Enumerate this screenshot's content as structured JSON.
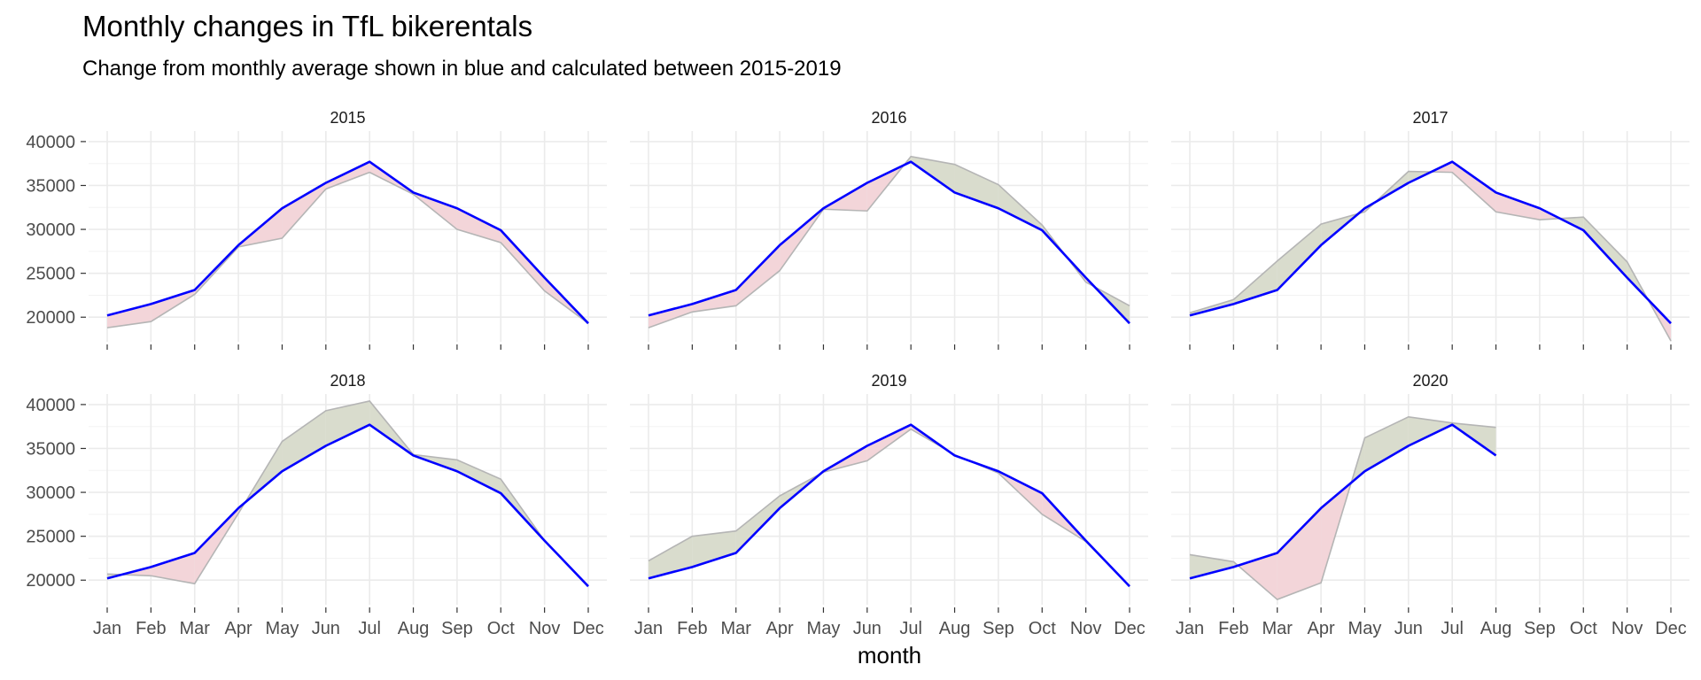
{
  "chart_data": {
    "type": "area",
    "title": "Monthly changes in TfL bikerentals",
    "subtitle": "Change from monthly average shown in blue and calculated between 2015-2019",
    "xlabel": "month",
    "ylabel": "",
    "categories": [
      "Jan",
      "Feb",
      "Mar",
      "Apr",
      "May",
      "Jun",
      "Jul",
      "Aug",
      "Sep",
      "Oct",
      "Nov",
      "Dec"
    ],
    "yticks": [
      20000,
      25000,
      30000,
      35000,
      40000
    ],
    "ylim": [
      17200,
      41200
    ],
    "grid": true,
    "legend": "none",
    "colors": {
      "average_line": "#0000ff",
      "above_fill": "#d9dccd",
      "below_fill": "#f3d5d9",
      "actual_line": "#b5b5b5",
      "grid": "#ebebeb"
    },
    "average": [
      20200,
      21500,
      23100,
      28200,
      32400,
      35300,
      37700,
      34200,
      32400,
      29900,
      24500,
      19300
    ],
    "panels": [
      {
        "label": "2015",
        "actual": [
          18800,
          19500,
          22600,
          28000,
          29000,
          34600,
          36500,
          34000,
          30000,
          28500,
          23000,
          19300
        ]
      },
      {
        "label": "2016",
        "actual": [
          18800,
          20600,
          21300,
          25300,
          32300,
          32100,
          38300,
          37400,
          35100,
          30500,
          24000,
          21300
        ]
      },
      {
        "label": "2017",
        "actual": [
          20500,
          22000,
          26400,
          30600,
          32000,
          36600,
          36500,
          32000,
          31100,
          31400,
          26300,
          17300
        ]
      },
      {
        "label": "2018",
        "actual": [
          20700,
          20500,
          19600,
          27600,
          35800,
          39300,
          40400,
          34300,
          33700,
          31500,
          24500,
          19300
        ]
      },
      {
        "label": "2019",
        "actual": [
          22200,
          25000,
          25600,
          29600,
          32300,
          33600,
          37200,
          34300,
          32200,
          27500,
          24400,
          19300
        ]
      },
      {
        "label": "2020",
        "actual": [
          22900,
          22100,
          17800,
          19700,
          36200,
          38600,
          37900,
          37400,
          null,
          null,
          null,
          null
        ]
      }
    ]
  }
}
